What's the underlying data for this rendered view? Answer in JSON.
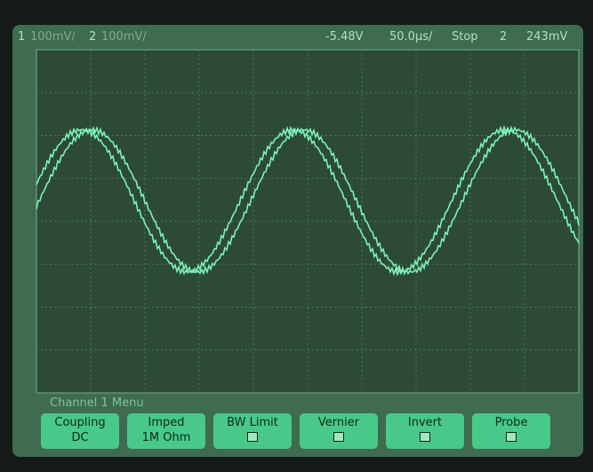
{
  "status_bar": {
    "ch1": "1",
    "ch1_scale": "100mV/",
    "ch2": "2",
    "ch2_scale": "100mV/",
    "trigger_level": "-5.48V",
    "timebase": "50.0µs/",
    "run_state": "Stop",
    "trigger_source": "2",
    "trigger_value": "243mV"
  },
  "menu": {
    "title": "Channel 1 Menu",
    "softkeys": [
      {
        "label": "Coupling",
        "value": "DC"
      },
      {
        "label": "Imped",
        "value": "1M Ohm"
      },
      {
        "label": "BW Limit"
      },
      {
        "label": "Vernier"
      },
      {
        "label": "Invert"
      },
      {
        "label": "Probe"
      }
    ]
  }
}
